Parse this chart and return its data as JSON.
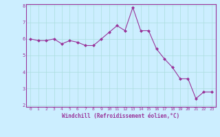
{
  "x": [
    0,
    1,
    2,
    3,
    4,
    5,
    6,
    7,
    8,
    9,
    10,
    11,
    12,
    13,
    14,
    15,
    16,
    17,
    18,
    19,
    20,
    21,
    22,
    23
  ],
  "y": [
    6.0,
    5.9,
    5.9,
    6.0,
    5.7,
    5.9,
    5.8,
    5.6,
    5.6,
    6.0,
    6.4,
    6.8,
    6.5,
    7.9,
    6.5,
    6.5,
    5.4,
    4.8,
    4.3,
    3.6,
    3.6,
    2.4,
    2.8,
    2.8
  ],
  "line_color": "#993399",
  "marker": "D",
  "marker_size": 2,
  "bg_color": "#cceeff",
  "grid_color": "#aadddd",
  "xlabel": "Windchill (Refroidissement éolien,°C)",
  "xlabel_color": "#993399",
  "tick_color": "#993399",
  "spine_color": "#993399",
  "ylim": [
    1.9,
    8.1
  ],
  "xlim": [
    -0.5,
    23.5
  ],
  "yticks": [
    2,
    3,
    4,
    5,
    6,
    7,
    8
  ],
  "xticks": [
    0,
    1,
    2,
    3,
    4,
    5,
    6,
    7,
    8,
    9,
    10,
    11,
    12,
    13,
    14,
    15,
    16,
    17,
    18,
    19,
    20,
    21,
    22,
    23
  ]
}
